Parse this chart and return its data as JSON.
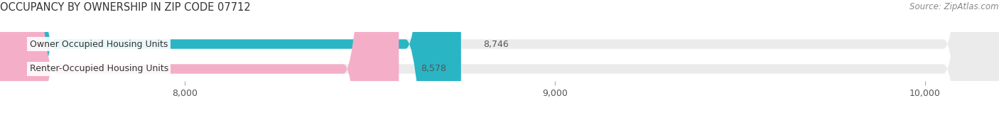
{
  "title": "OCCUPANCY BY OWNERSHIP IN ZIP CODE 07712",
  "source": "Source: ZipAtlas.com",
  "categories": [
    "Owner Occupied Housing Units",
    "Renter-Occupied Housing Units"
  ],
  "values": [
    8746,
    8578
  ],
  "bar_colors": [
    "#2ab5c4",
    "#f5aec8"
  ],
  "background_color": "#ffffff",
  "bar_bg_color": "#ebebeb",
  "xlim_min": 7500,
  "xlim_max": 10200,
  "xticks": [
    8000,
    9000,
    10000
  ],
  "bar_height": 0.38,
  "bar_gap": 0.16,
  "title_fontsize": 10.5,
  "label_fontsize": 9,
  "value_fontsize": 9,
  "source_fontsize": 8.5,
  "tick_fontsize": 9
}
